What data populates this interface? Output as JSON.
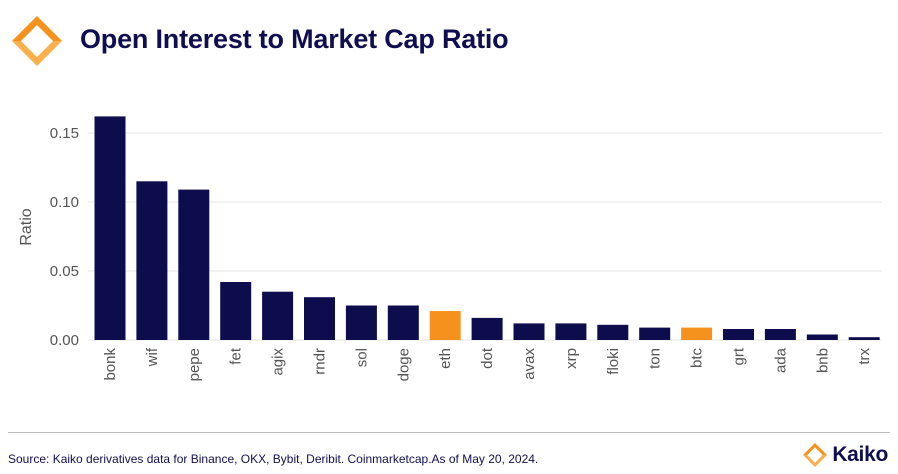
{
  "header": {
    "title": "Open Interest to Market Cap Ratio",
    "logo_icon": "kaiko-logo-icon"
  },
  "footer": {
    "source": "Source: Kaiko derivatives data for Binance, OKX, Bybit, Deribit. Coinmarketcap.As of May 20, 2024.",
    "brand": "Kaiko"
  },
  "colors": {
    "bar": "#0d0d4d",
    "highlight": "#f5921e",
    "grid": "#e6e6e6"
  },
  "chart_data": {
    "type": "bar",
    "title": "Open Interest to Market Cap Ratio",
    "xlabel": "",
    "ylabel": "Ratio",
    "ylim": [
      0,
      0.17
    ],
    "yticks": [
      "0.00",
      "0.05",
      "0.10",
      "0.15"
    ],
    "ytick_values": [
      0,
      0.05,
      0.1,
      0.15
    ],
    "grid": true,
    "categories": [
      "bonk",
      "wif",
      "pepe",
      "fet",
      "agix",
      "rndr",
      "sol",
      "doge",
      "eth",
      "dot",
      "avax",
      "xrp",
      "floki",
      "ton",
      "btc",
      "grt",
      "ada",
      "bnb",
      "trx"
    ],
    "values": [
      0.162,
      0.115,
      0.109,
      0.042,
      0.035,
      0.031,
      0.025,
      0.025,
      0.021,
      0.016,
      0.012,
      0.012,
      0.011,
      0.009,
      0.009,
      0.008,
      0.008,
      0.004,
      0.002
    ],
    "highlighted": [
      "eth",
      "btc"
    ]
  }
}
